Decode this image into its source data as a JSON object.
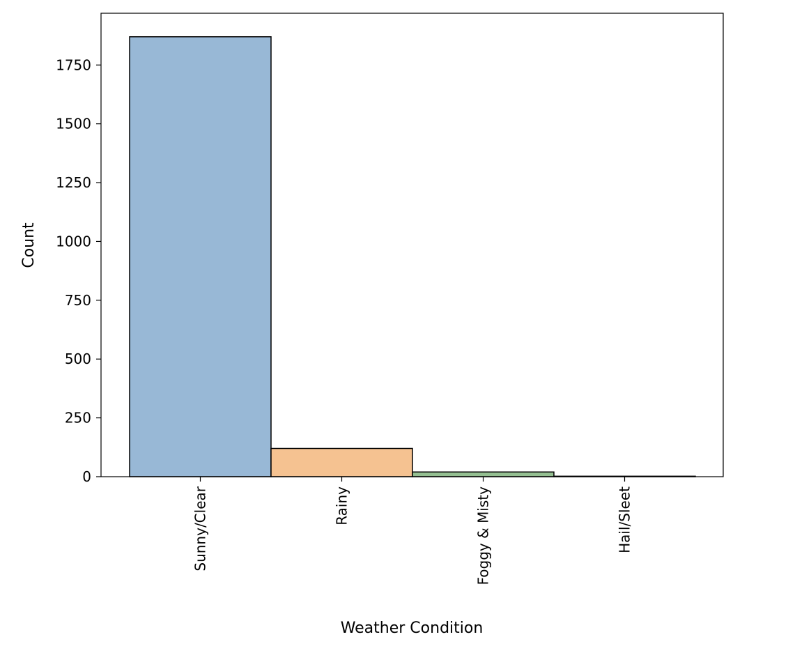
{
  "chart_data": {
    "type": "bar",
    "title": "",
    "xlabel": "Weather Condition",
    "ylabel": "Count",
    "ylim": [
      0,
      1970
    ],
    "yticks": [
      0,
      250,
      500,
      750,
      1000,
      1250,
      1500,
      1750
    ],
    "grid": false,
    "categories": [
      "Sunny/Clear",
      "Rainy",
      "Foggy & Misty",
      "Hail/Sleet"
    ],
    "values": [
      1870,
      120,
      20,
      2
    ],
    "colors": [
      "#98b8d6",
      "#f5c291",
      "#94bf91",
      "#b6a7cd"
    ],
    "edge_color": "#000000"
  }
}
